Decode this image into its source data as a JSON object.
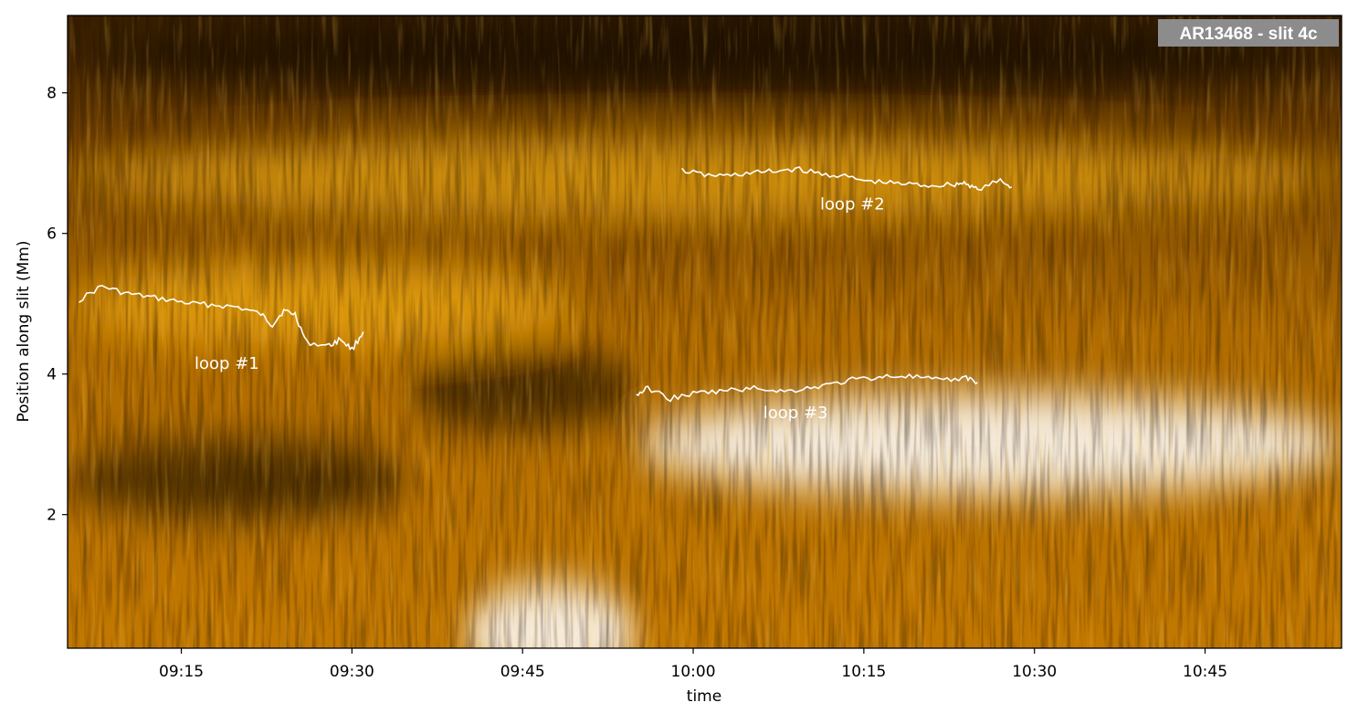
{
  "chart_data": {
    "type": "heatmap",
    "title": "AR13468 - slit 4c",
    "xlabel": "time",
    "ylabel": "Position along slit (Mm)",
    "x_ticks": [
      "09:15",
      "09:30",
      "09:45",
      "10:00",
      "10:15",
      "10:30",
      "10:45"
    ],
    "y_ticks": [
      "2",
      "4",
      "6",
      "8"
    ],
    "xlim": [
      "09:05",
      "10:57"
    ],
    "ylim": [
      0.1,
      9.1
    ],
    "colormap": "sdoaia171-like (black-orange-yellow-white)",
    "colors": {
      "dark": "#000000",
      "mid": "#e38c00",
      "bright": "#ffb90f",
      "white": "#ffffff",
      "trace": "#ffffff",
      "title_bg": "#8c8c8c"
    },
    "band_features": [
      {
        "time_start": "09:05",
        "time_end": "10:57",
        "position": 8.5,
        "intensity": "dark"
      },
      {
        "time_start": "09:05",
        "time_end": "10:57",
        "position": 6.8,
        "intensity": "bright"
      },
      {
        "time_start": "09:05",
        "time_end": "09:50",
        "position": 5.0,
        "intensity": "bright"
      },
      {
        "time_start": "09:35",
        "time_end": "09:55",
        "position": 3.8,
        "intensity": "dark"
      },
      {
        "time_start": "09:55",
        "time_end": "10:57",
        "position": 3.0,
        "intensity": "white"
      },
      {
        "time_start": "09:05",
        "time_end": "09:35",
        "position": 2.5,
        "intensity": "dark"
      },
      {
        "time_start": "09:40",
        "time_end": "09:55",
        "position": 0.3,
        "intensity": "white"
      }
    ],
    "series": [
      {
        "name": "loop #1",
        "label_time": "09:19",
        "label_position": 4.15,
        "time": [
          "09:06",
          "09:08",
          "09:10",
          "09:12",
          "09:14",
          "09:16",
          "09:18",
          "09:20",
          "09:22",
          "09:23",
          "09:24",
          "09:25",
          "09:26",
          "09:28",
          "09:29",
          "09:30",
          "09:31"
        ],
        "position": [
          5.05,
          5.25,
          5.15,
          5.1,
          5.05,
          5.0,
          4.98,
          4.95,
          4.85,
          4.7,
          4.9,
          4.85,
          4.45,
          4.4,
          4.5,
          4.35,
          4.6
        ]
      },
      {
        "name": "loop #2",
        "label_time": "10:14",
        "label_position": 6.42,
        "time": [
          "09:59",
          "10:01",
          "10:03",
          "10:05",
          "10:07",
          "10:09",
          "10:11",
          "10:13",
          "10:15",
          "10:17",
          "10:19",
          "10:21",
          "10:23",
          "10:24",
          "10:25",
          "10:27",
          "10:28"
        ],
        "position": [
          6.9,
          6.83,
          6.82,
          6.86,
          6.88,
          6.92,
          6.85,
          6.82,
          6.75,
          6.72,
          6.7,
          6.68,
          6.7,
          6.72,
          6.62,
          6.75,
          6.66
        ]
      },
      {
        "name": "loop #3",
        "label_time": "10:09",
        "label_position": 3.45,
        "time": [
          "09:55",
          "09:56",
          "09:58",
          "10:00",
          "10:02",
          "10:04",
          "10:06",
          "10:08",
          "10:10",
          "10:12",
          "10:14",
          "10:16",
          "10:18",
          "10:20",
          "10:22",
          "10:24",
          "10:25"
        ],
        "position": [
          3.7,
          3.8,
          3.65,
          3.72,
          3.75,
          3.78,
          3.8,
          3.75,
          3.8,
          3.85,
          3.92,
          3.95,
          3.98,
          3.95,
          3.9,
          3.95,
          3.88
        ]
      }
    ]
  }
}
